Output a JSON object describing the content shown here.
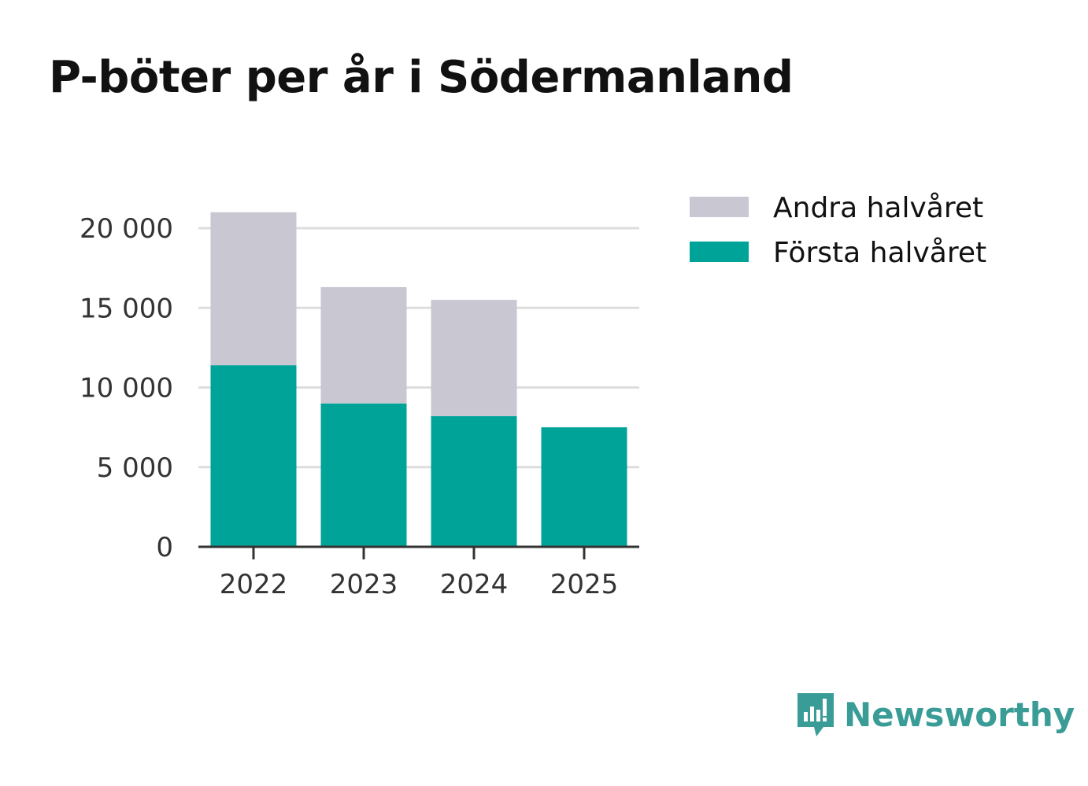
{
  "chart_data": {
    "type": "bar",
    "stacked": true,
    "title": "P-böter per år i Södermanland",
    "xlabel": "",
    "ylabel": "",
    "categories": [
      "2022",
      "2023",
      "2024",
      "2025"
    ],
    "series": [
      {
        "name": "Första halvåret",
        "color": "#00a398",
        "values": [
          11400,
          9000,
          8200,
          7500
        ]
      },
      {
        "name": "Andra halvåret",
        "color": "#c8c7d2",
        "values": [
          9600,
          7300,
          7300,
          0
        ]
      }
    ],
    "ylim": [
      0,
      20000
    ],
    "yticks": [
      0,
      5000,
      10000,
      15000,
      20000
    ],
    "ytick_labels": [
      "0",
      "5 000",
      "10 000",
      "15 000",
      "20 000"
    ],
    "grid": true,
    "legend": {
      "position": "top-right",
      "items": [
        {
          "label": "Andra halvåret",
          "color": "#c8c7d2"
        },
        {
          "label": "Första halvåret",
          "color": "#00a398"
        }
      ]
    }
  },
  "branding": {
    "name": "Newsworthy",
    "icon": "newsworthy-logo-icon",
    "color": "#3a9c96"
  }
}
